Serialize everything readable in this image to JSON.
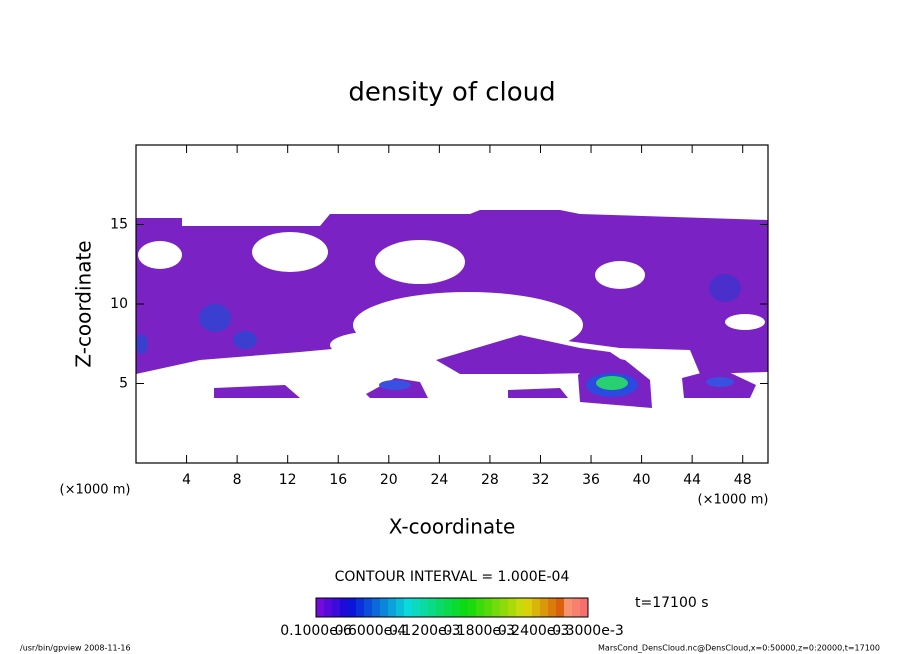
{
  "chart_data": {
    "type": "contour",
    "title": "density of cloud",
    "xlabel": "X-coordinate",
    "ylabel": "Z-coordinate",
    "x_unit_left": "(×1000 m)",
    "x_unit_right": "(×1000 m)",
    "xlim": [
      0,
      50
    ],
    "ylim": [
      0,
      20
    ],
    "xticks": [
      4,
      8,
      12,
      16,
      20,
      24,
      28,
      32,
      36,
      40,
      44,
      48
    ],
    "yticks": [
      5,
      10,
      15
    ],
    "contour_interval": "CONTOUR INTERVAL = 1.000E-04",
    "time": "t=17100 s",
    "colorbar_labels": [
      "0.1000e-6",
      "0.6000e-4",
      "0.1200e-3",
      "0.1800e-3",
      "0.2400e-3",
      "0.3000e-3"
    ],
    "footer_left": "/usr/bin/gpview   2008-11-16",
    "footer_right": "MarsCond_DensCloud.nc@DensCloud,x=0:50000,z=0:20000,t=17100"
  }
}
